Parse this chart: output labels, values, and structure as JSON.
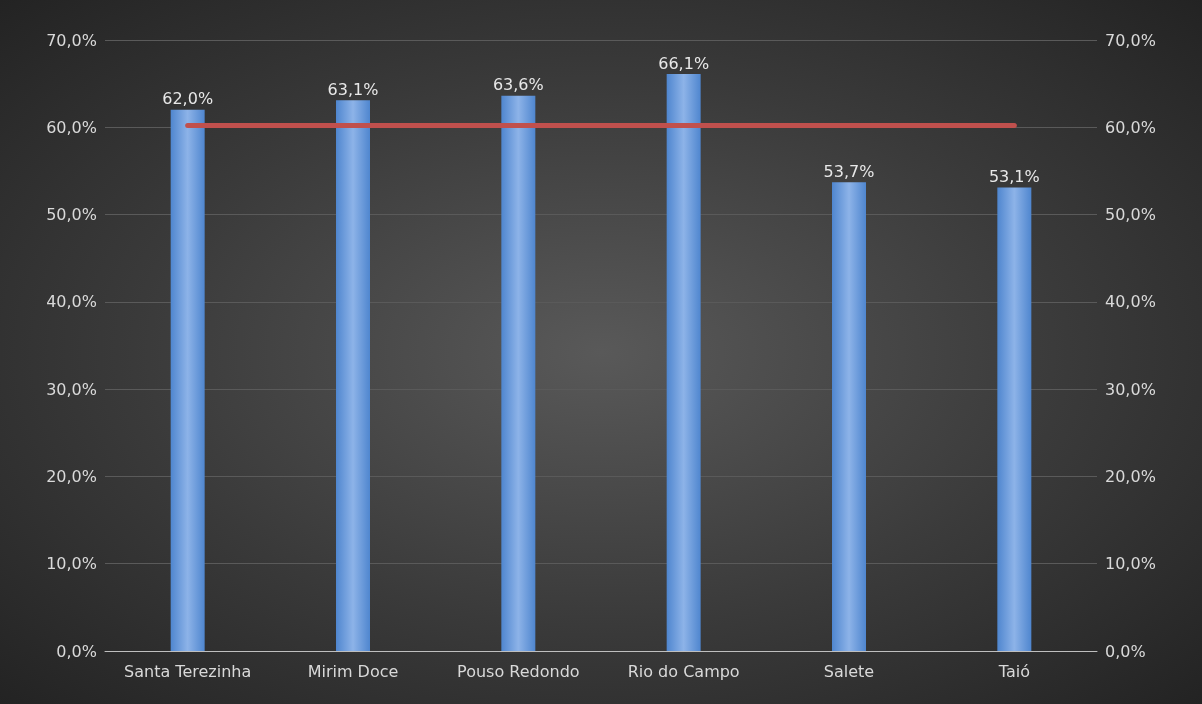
{
  "chart_data": {
    "type": "bar",
    "categories": [
      "Santa Terezinha",
      "Mirim Doce",
      "Pouso Redondo",
      "Rio do Campo",
      "Salete",
      "Taió"
    ],
    "series": [
      {
        "color": "#4f86cf",
        "values": [
          62.0,
          63.1,
          63.6,
          66.1,
          53.7,
          53.1
        ],
        "value_labels": [
          "62,0%",
          "63,1%",
          "63,6%",
          "66,1%",
          "53,7%",
          "53,1%"
        ]
      },
      {
        "type": "line",
        "color": "#c0504d",
        "values": [
          60.2,
          60.2,
          60.2,
          60.2,
          60.2,
          60.2
        ]
      }
    ],
    "ylim": [
      0,
      70
    ],
    "yticks": [
      {
        "value": 0,
        "label": "0,0%"
      },
      {
        "value": 10,
        "label": "10,0%"
      },
      {
        "value": 20,
        "label": "20,0%"
      },
      {
        "value": 30,
        "label": "30,0%"
      },
      {
        "value": 40,
        "label": "40,0%"
      },
      {
        "value": 50,
        "label": "50,0%"
      },
      {
        "value": 60,
        "label": "60,0%"
      },
      {
        "value": 70,
        "label": "70,0%"
      }
    ],
    "y2lim": [
      0,
      70
    ],
    "y2ticks": [
      {
        "value": 0,
        "label": "0,0%"
      },
      {
        "value": 10,
        "label": "10,0%"
      },
      {
        "value": 20,
        "label": "20,0%"
      },
      {
        "value": 30,
        "label": "30,0%"
      },
      {
        "value": 40,
        "label": "40,0%"
      },
      {
        "value": 50,
        "label": "50,0%"
      },
      {
        "value": 60,
        "label": "60,0%"
      },
      {
        "value": 70,
        "label": "70,0%"
      }
    ],
    "grid": "y",
    "marker": "none",
    "line_style": "solid"
  }
}
